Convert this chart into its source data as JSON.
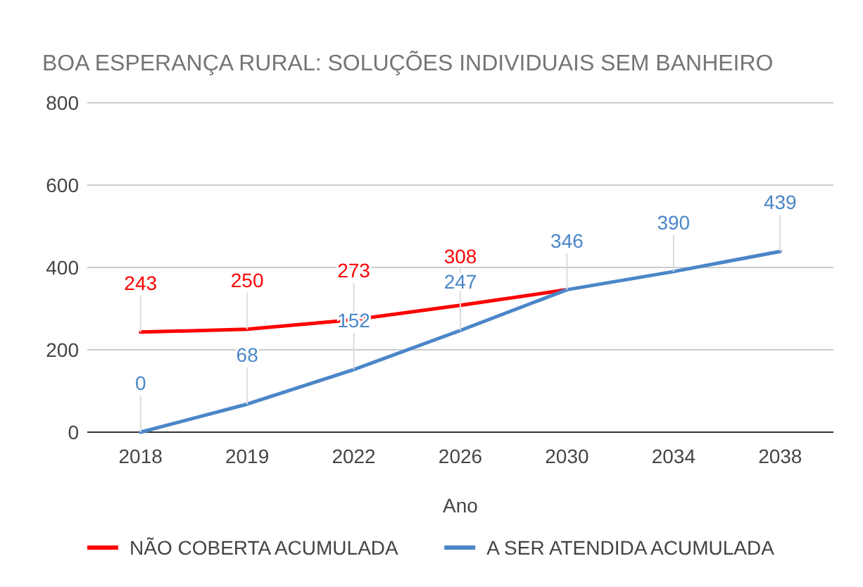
{
  "chart_data": {
    "type": "line",
    "title": "BOA ESPERANÇA RURAL: SOLUÇÕES INDIVIDUAIS SEM BANHEIRO",
    "xlabel": "Ano",
    "categories": [
      "2018",
      "2019",
      "2022",
      "2026",
      "2030",
      "2034",
      "2038"
    ],
    "series": [
      {
        "name": "NÃO COBERTA ACUMULADA",
        "color": "#ff0000",
        "values": [
          243,
          250,
          273,
          308,
          346,
          null,
          null
        ],
        "value_labels": [
          "243",
          "250",
          "273",
          "308",
          null,
          null,
          null
        ]
      },
      {
        "name": "A SER ATENDIDA ACUMULADA",
        "color": "#4a86c8",
        "values": [
          0,
          68,
          152,
          247,
          346,
          390,
          439
        ],
        "value_labels": [
          "0",
          "68",
          "152",
          "247",
          "346",
          "390",
          "439"
        ]
      }
    ],
    "ylim": [
      0,
      800
    ],
    "yticks": [
      0,
      200,
      400,
      600,
      800
    ],
    "grid": "y",
    "legend": "bottom",
    "marker": "none",
    "line_style": "solid"
  }
}
